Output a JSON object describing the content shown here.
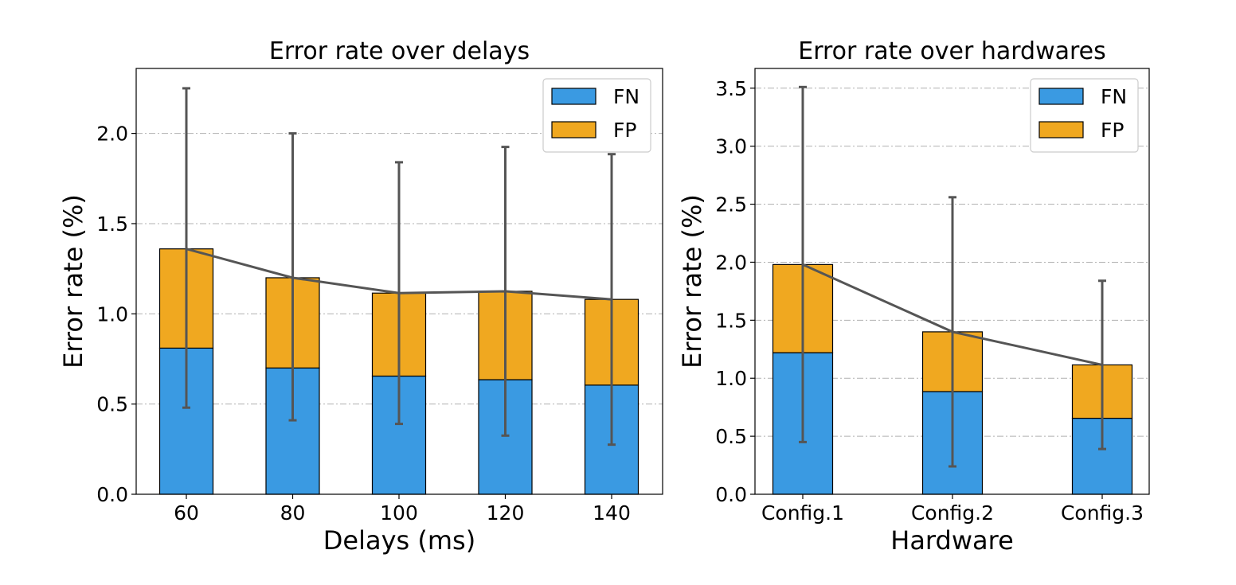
{
  "chart_data": [
    {
      "type": "bar",
      "stacked": true,
      "title": "Error rate over delays",
      "xlabel": "Delays (ms)",
      "ylabel": "Error rate (%)",
      "categories": [
        "60",
        "80",
        "100",
        "120",
        "140"
      ],
      "ylim": [
        0,
        2.36
      ],
      "yticks": [
        0.0,
        0.5,
        1.0,
        1.5,
        2.0
      ],
      "ytick_labels": [
        "0.0",
        "0.5",
        "1.0",
        "1.5",
        "2.0"
      ],
      "grid": "y",
      "legend_position": "top-right",
      "series": [
        {
          "name": "FN",
          "values": [
            0.81,
            0.7,
            0.655,
            0.635,
            0.605
          ]
        },
        {
          "name": "FP",
          "values": [
            0.55,
            0.5,
            0.46,
            0.49,
            0.475
          ]
        }
      ],
      "totals": [
        1.36,
        1.2,
        1.115,
        1.125,
        1.08
      ],
      "error_low": [
        0.48,
        0.41,
        0.39,
        0.325,
        0.275
      ],
      "error_high": [
        2.25,
        2.0,
        1.84,
        1.925,
        1.885
      ]
    },
    {
      "type": "bar",
      "stacked": true,
      "title": "Error rate over hardwares",
      "xlabel": "Hardware",
      "ylabel": "Error rate (%)",
      "categories": [
        "Config.1",
        "Config.2",
        "Config.3"
      ],
      "ylim": [
        0,
        3.67
      ],
      "yticks": [
        0.0,
        0.5,
        1.0,
        1.5,
        2.0,
        2.5,
        3.0,
        3.5
      ],
      "ytick_labels": [
        "0.0",
        "0.5",
        "1.0",
        "1.5",
        "2.0",
        "2.5",
        "3.0",
        "3.5"
      ],
      "grid": "y",
      "legend_position": "top-right",
      "series": [
        {
          "name": "FN",
          "values": [
            1.22,
            0.885,
            0.655
          ]
        },
        {
          "name": "FP",
          "values": [
            0.76,
            0.515,
            0.46
          ]
        }
      ],
      "totals": [
        1.98,
        1.4,
        1.115
      ],
      "error_low": [
        0.45,
        0.24,
        0.39
      ],
      "error_high": [
        3.51,
        2.56,
        1.84
      ]
    }
  ],
  "colors": {
    "FN": "#3a9ae2",
    "FP": "#f0a820",
    "error_bar": "#555555",
    "grid": "#b0b0b0"
  }
}
